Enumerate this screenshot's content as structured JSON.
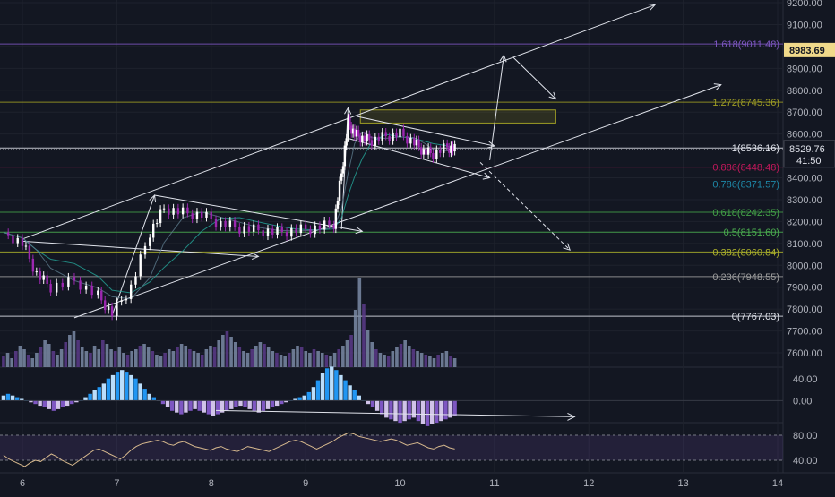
{
  "price_axis": {
    "labels": [
      "9200.00",
      "9100.00",
      "9000.00",
      "8900.00",
      "8800.00",
      "8700.00",
      "8600.00",
      "8400.00",
      "8300.00",
      "8200.00",
      "8100.00",
      "8000.00",
      "7900.00",
      "7800.00",
      "7700.00",
      "7600.00"
    ],
    "values": [
      9200,
      9100,
      9000,
      8900,
      8800,
      8700,
      8600,
      8400,
      8300,
      8200,
      8100,
      8000,
      7900,
      7800,
      7700,
      7600
    ]
  },
  "price_badges": {
    "target": "8983.69",
    "current": "8529.76",
    "countdown": "41:50"
  },
  "fib_levels": [
    {
      "label": "1.618(9011.48)",
      "value": 9011.48,
      "color": "#7e57c2"
    },
    {
      "label": "1.272(8745.36)",
      "value": 8745.36,
      "color": "#9e9d24"
    },
    {
      "label": "1(8536.16)",
      "value": 8536.16,
      "color": "#e0e3eb"
    },
    {
      "label": "0.886(8448.48)",
      "value": 8448.48,
      "color": "#c2185b"
    },
    {
      "label": "0.786(8371.57)",
      "value": 8371.57,
      "color": "#1e88a8"
    },
    {
      "label": "0.618(8242.35)",
      "value": 8242.35,
      "color": "#43a047"
    },
    {
      "label": "0.5(8151.60)",
      "value": 8151.6,
      "color": "#4caf50"
    },
    {
      "label": "0.382(8060.84)",
      "value": 8060.84,
      "color": "#afb42b"
    },
    {
      "label": "0.236(7948.55)",
      "value": 7948.55,
      "color": "#9e9e9e"
    },
    {
      "label": "0(7767.03)",
      "value": 7767.03,
      "color": "#e0e3eb"
    }
  ],
  "macd_axis": {
    "labels": [
      "40.00",
      "0.00"
    ],
    "values": [
      40,
      0
    ]
  },
  "rsi_axis": {
    "labels": [
      "80.00",
      "40.00"
    ],
    "values": [
      80,
      40
    ]
  },
  "time_axis": {
    "labels": [
      "6",
      "7",
      "8",
      "9",
      "10",
      "11",
      "12",
      "13",
      "14"
    ],
    "values": [
      6,
      7,
      8,
      9,
      10,
      11,
      12,
      13,
      14
    ]
  },
  "chart_data": {
    "type": "line",
    "title": "",
    "xlabel": "",
    "ylabel": "",
    "x_range": [
      5.8,
      14.3
    ],
    "ylim": [
      7520,
      9240
    ],
    "price_path": {
      "x": [
        5.8,
        6.0,
        6.15,
        6.3,
        6.55,
        6.8,
        6.95,
        7.15,
        7.35,
        7.5,
        7.7,
        7.9,
        8.1,
        8.3,
        8.5,
        8.7,
        8.9,
        9.1,
        9.3,
        9.38,
        9.45,
        9.52,
        9.6,
        9.7,
        9.85,
        10.0,
        10.15,
        10.25,
        10.35,
        10.5,
        10.58
      ],
      "y": [
        8150,
        8100,
        7960,
        7900,
        7930,
        7860,
        7780,
        7900,
        8150,
        8260,
        8240,
        8230,
        8190,
        8170,
        8160,
        8150,
        8160,
        8170,
        8190,
        8420,
        8650,
        8600,
        8580,
        8570,
        8590,
        8600,
        8560,
        8520,
        8510,
        8540,
        8529.76
      ]
    },
    "volume": [
      12,
      16,
      10,
      18,
      24,
      20,
      14,
      10,
      16,
      22,
      30,
      26,
      18,
      14,
      20,
      28,
      36,
      40,
      30,
      22,
      18,
      16,
      24,
      20,
      30,
      26,
      20,
      18,
      22,
      16,
      14,
      18,
      20,
      24,
      26,
      22,
      18,
      14,
      12,
      16,
      20,
      18,
      22,
      26,
      24,
      20,
      18,
      16,
      14,
      20,
      24,
      22,
      30,
      36,
      40,
      34,
      28,
      22,
      18,
      16,
      20,
      24,
      28,
      26,
      22,
      18,
      16,
      14,
      12,
      16,
      20,
      24,
      22,
      18,
      16,
      20,
      18,
      16,
      14,
      12,
      16,
      20,
      24,
      30,
      36,
      64,
      100,
      70,
      42,
      28,
      20,
      16,
      14,
      12,
      18,
      22,
      26,
      30,
      24,
      20,
      18,
      16,
      14,
      12,
      10,
      14,
      16,
      18,
      12,
      10
    ],
    "macd_hist": [
      6,
      8,
      6,
      4,
      2,
      0,
      -2,
      -4,
      -6,
      -8,
      -10,
      -12,
      -10,
      -8,
      -6,
      -4,
      -2,
      0,
      4,
      8,
      12,
      16,
      20,
      26,
      30,
      34,
      36,
      34,
      30,
      26,
      20,
      14,
      8,
      4,
      0,
      -4,
      -8,
      -12,
      -14,
      -16,
      -14,
      -12,
      -10,
      -12,
      -14,
      -16,
      -18,
      -16,
      -14,
      -12,
      -10,
      -8,
      -6,
      -8,
      -10,
      -12,
      -14,
      -12,
      -10,
      -8,
      -6,
      -4,
      -2,
      0,
      2,
      4,
      6,
      10,
      16,
      24,
      32,
      38,
      40,
      36,
      30,
      24,
      18,
      12,
      6,
      0,
      -4,
      -8,
      -12,
      -16,
      -20,
      -22,
      -24,
      -26,
      -24,
      -22,
      -20,
      -24,
      -28,
      -30,
      -28,
      -26,
      -24,
      -22,
      -20,
      -18
    ],
    "rsi": [
      48,
      42,
      38,
      34,
      30,
      36,
      40,
      38,
      44,
      50,
      46,
      40,
      36,
      32,
      38,
      44,
      50,
      56,
      58,
      54,
      50,
      46,
      42,
      48,
      56,
      62,
      66,
      68,
      70,
      72,
      70,
      66,
      64,
      68,
      70,
      66,
      62,
      60,
      58,
      56,
      60,
      62,
      58,
      56,
      54,
      58,
      62,
      60,
      58,
      56,
      54,
      58,
      62,
      66,
      70,
      72,
      70,
      66,
      62,
      58,
      62,
      66,
      70,
      76,
      80,
      84,
      82,
      78,
      76,
      74,
      72,
      70,
      72,
      74,
      72,
      68,
      64,
      66,
      68,
      64,
      60,
      58,
      62,
      64,
      60,
      58
    ],
    "fib_levels": [
      9011.48,
      8745.36,
      8536.16,
      8448.48,
      8371.57,
      8242.35,
      8151.6,
      8060.84,
      7948.55,
      7767.03
    ],
    "target_price": 8983.69,
    "current_price": 8529.76
  }
}
